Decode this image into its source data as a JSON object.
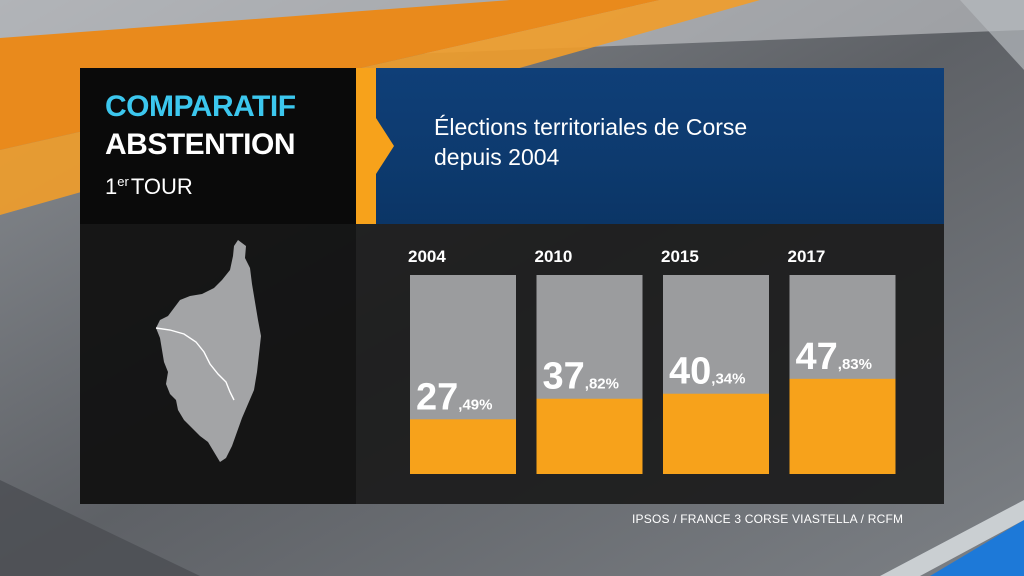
{
  "header": {
    "line1": "COMPARATIF",
    "line2": "ABSTENTION",
    "round_number": "1",
    "round_superscript": "er",
    "round_word": "TOUR",
    "subtitle_line1": "Élections territoriales de Corse",
    "subtitle_line2": "depuis 2004"
  },
  "source": "IPSOS / FRANCE 3 CORSE VIASTELLA / RCFM",
  "colors": {
    "accent_cyan": "#3cc7ee",
    "accent_orange": "#f7a21b",
    "panel_blue": "#0f3f78",
    "bar_track": "#9b9c9e",
    "map_fill": "#a3a4a6"
  },
  "map": {
    "region": "Corse"
  },
  "chart_data": {
    "type": "bar",
    "categories": [
      "2004",
      "2010",
      "2015",
      "2017"
    ],
    "values": [
      27.49,
      37.82,
      40.34,
      47.83
    ],
    "value_labels": [
      {
        "int": "27",
        "dec": ",49%"
      },
      {
        "int": "37",
        "dec": ",82%"
      },
      {
        "int": "40",
        "dec": ",34%"
      },
      {
        "int": "47",
        "dec": ",83%"
      }
    ],
    "ylim": [
      0,
      100
    ],
    "bar_color": "#f7a21b",
    "track_color": "#9b9c9e",
    "title": "",
    "xlabel": "",
    "ylabel": ""
  }
}
